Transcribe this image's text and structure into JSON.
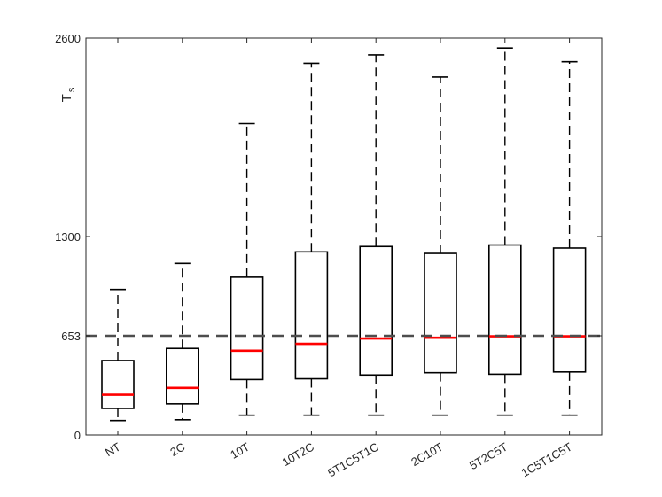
{
  "chart_data": {
    "type": "box",
    "title": "",
    "xlabel": "",
    "ylabel": "T",
    "ylabel_subscript": "s",
    "ylim": [
      0,
      2600
    ],
    "yticks": [
      0,
      653,
      1300,
      2600
    ],
    "ytick_labels": [
      "0",
      "653",
      "1300",
      "2600"
    ],
    "reference_line": {
      "y": 653,
      "style": "dashed",
      "color": "#4d4d4d"
    },
    "colors": {
      "box": "#000000",
      "median": "#ff0000",
      "whisker": "#000000"
    },
    "categories": [
      "NT",
      "2C",
      "10T",
      "10T2C",
      "5T1C5T1C",
      "2C10T",
      "5T2C5T",
      "1C5T1C5T"
    ],
    "boxes": [
      {
        "label": "NT",
        "whisker_low": 95,
        "q1": 175,
        "median": 265,
        "q3": 490,
        "whisker_high": 955
      },
      {
        "label": "2C",
        "whisker_low": 100,
        "q1": 205,
        "median": 310,
        "q3": 570,
        "whisker_high": 1125
      },
      {
        "label": "10T",
        "whisker_low": 130,
        "q1": 365,
        "median": 555,
        "q3": 1035,
        "whisker_high": 2040
      },
      {
        "label": "10T2C",
        "whisker_low": 130,
        "q1": 370,
        "median": 600,
        "q3": 1200,
        "whisker_high": 2435
      },
      {
        "label": "5T1C5T1C",
        "whisker_low": 130,
        "q1": 395,
        "median": 635,
        "q3": 1235,
        "whisker_high": 2490
      },
      {
        "label": "2C10T",
        "whisker_low": 130,
        "q1": 410,
        "median": 640,
        "q3": 1190,
        "whisker_high": 2345
      },
      {
        "label": "5T2C5T",
        "whisker_low": 130,
        "q1": 400,
        "median": 650,
        "q3": 1245,
        "whisker_high": 2535
      },
      {
        "label": "1C5T1C5T",
        "whisker_low": 130,
        "q1": 415,
        "median": 650,
        "q3": 1225,
        "whisker_high": 2445
      }
    ]
  }
}
